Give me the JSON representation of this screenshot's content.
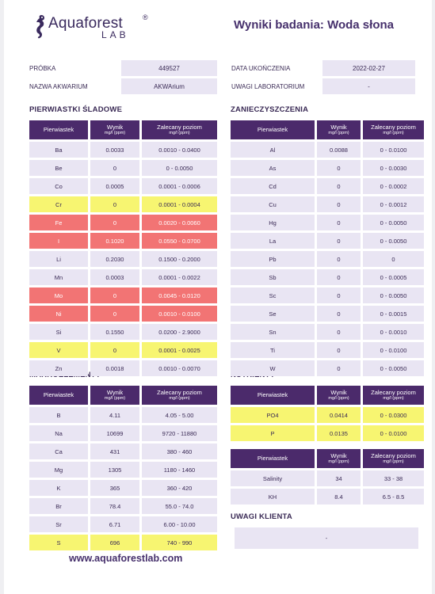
{
  "logo": {
    "brand": "Aquaforest",
    "reg": "®",
    "lab": "LAB"
  },
  "title": "Wyniki badania: Woda słona",
  "meta": {
    "sample_label": "PRÓBKA",
    "sample_value": "449527",
    "aquarium_label": "NAZWA AKWARIUM",
    "aquarium_value": "AKWArium",
    "date_label": "DATA UKOŃCZENIA",
    "date_value": "2022-02-27",
    "notes_label": "UWAGI LABORATORIUM",
    "notes_value": "-"
  },
  "header": {
    "element": "Pierwiastek",
    "result": "Wynik",
    "unit": "mg/l (ppm)",
    "recommended": "Zalecany poziom"
  },
  "trace": {
    "title": "PIERWIASTKI ŚLADOWE",
    "rows": [
      {
        "el": "Ba",
        "val": "0.0033",
        "rec": "0.0010 - 0.0400",
        "status": "ok"
      },
      {
        "el": "Be",
        "val": "0",
        "rec": "0 - 0.0050",
        "status": "ok"
      },
      {
        "el": "Co",
        "val": "0.0005",
        "rec": "0.0001 - 0.0006",
        "status": "ok"
      },
      {
        "el": "Cr",
        "val": "0",
        "rec": "0.0001 - 0.0004",
        "status": "low"
      },
      {
        "el": "Fe",
        "val": "0",
        "rec": "0.0020 - 0.0060",
        "status": "bad"
      },
      {
        "el": "I",
        "val": "0.1020",
        "rec": "0.0550 - 0.0700",
        "status": "bad"
      },
      {
        "el": "Li",
        "val": "0.2030",
        "rec": "0.1500 - 0.2000",
        "status": "ok"
      },
      {
        "el": "Mn",
        "val": "0.0003",
        "rec": "0.0001 - 0.0022",
        "status": "ok"
      },
      {
        "el": "Mo",
        "val": "0",
        "rec": "0.0045 - 0.0120",
        "status": "bad"
      },
      {
        "el": "Ni",
        "val": "0",
        "rec": "0.0010 - 0.0100",
        "status": "bad"
      },
      {
        "el": "Si",
        "val": "0.1550",
        "rec": "0.0200 - 2.9000",
        "status": "ok"
      },
      {
        "el": "V",
        "val": "0",
        "rec": "0.0001 - 0.0025",
        "status": "low"
      },
      {
        "el": "Zn",
        "val": "0.0018",
        "rec": "0.0010 - 0.0070",
        "status": "ok"
      }
    ]
  },
  "contaminants": {
    "title": "ZANIECZYSZCZENIA",
    "rows": [
      {
        "el": "Al",
        "val": "0.0088",
        "rec": "0 - 0.0100",
        "status": "ok"
      },
      {
        "el": "As",
        "val": "0",
        "rec": "0 - 0.0030",
        "status": "ok"
      },
      {
        "el": "Cd",
        "val": "0",
        "rec": "0 - 0.0002",
        "status": "ok"
      },
      {
        "el": "Cu",
        "val": "0",
        "rec": "0 - 0.0012",
        "status": "ok"
      },
      {
        "el": "Hg",
        "val": "0",
        "rec": "0 - 0.0050",
        "status": "ok"
      },
      {
        "el": "La",
        "val": "0",
        "rec": "0 - 0.0050",
        "status": "ok"
      },
      {
        "el": "Pb",
        "val": "0",
        "rec": "0",
        "status": "ok"
      },
      {
        "el": "Sb",
        "val": "0",
        "rec": "0 - 0.0005",
        "status": "ok"
      },
      {
        "el": "Sc",
        "val": "0",
        "rec": "0 - 0.0050",
        "status": "ok"
      },
      {
        "el": "Se",
        "val": "0",
        "rec": "0 - 0.0015",
        "status": "ok"
      },
      {
        "el": "Sn",
        "val": "0",
        "rec": "0 - 0.0010",
        "status": "ok"
      },
      {
        "el": "Ti",
        "val": "0",
        "rec": "0 - 0.0100",
        "status": "ok"
      },
      {
        "el": "W",
        "val": "0",
        "rec": "0 - 0.0050",
        "status": "ok"
      }
    ]
  },
  "macro": {
    "title": "MAKROELEMENTY",
    "rows": [
      {
        "el": "B",
        "val": "4.11",
        "rec": "4.05 - 5.00",
        "status": "ok"
      },
      {
        "el": "Na",
        "val": "10699",
        "rec": "9720 - 11880",
        "status": "ok"
      },
      {
        "el": "Ca",
        "val": "431",
        "rec": "380 - 460",
        "status": "ok"
      },
      {
        "el": "Mg",
        "val": "1305",
        "rec": "1180 - 1460",
        "status": "ok"
      },
      {
        "el": "K",
        "val": "365",
        "rec": "360 - 420",
        "status": "ok"
      },
      {
        "el": "Br",
        "val": "78.4",
        "rec": "55.0 - 74.0",
        "status": "ok"
      },
      {
        "el": "Sr",
        "val": "6.71",
        "rec": "6.00 - 10.00",
        "status": "ok"
      },
      {
        "el": "S",
        "val": "696",
        "rec": "740 - 990",
        "status": "low"
      }
    ]
  },
  "nutrients": {
    "title": "NUTRIENTY",
    "rows": [
      {
        "el": "PO4",
        "val": "0.0414",
        "rec": "0 - 0.0300",
        "status": "low"
      },
      {
        "el": "P",
        "val": "0.0135",
        "rec": "0 - 0.0100",
        "status": "low"
      }
    ]
  },
  "other": {
    "rows": [
      {
        "el": "Salinity",
        "val": "34",
        "rec": "33 - 38",
        "status": "ok"
      },
      {
        "el": "KH",
        "val": "8.4",
        "rec": "6.5 - 8.5",
        "status": "ok"
      }
    ]
  },
  "client_notes": {
    "title": "UWAGI KLIENTA",
    "value": "-"
  },
  "footer": {
    "url": "www.aquaforestlab.com"
  },
  "colors": {
    "header_bg": "#4b2a6b",
    "cell_bg": "#e9e5f3",
    "warning": "#f7f571",
    "alert": "#f27474"
  }
}
